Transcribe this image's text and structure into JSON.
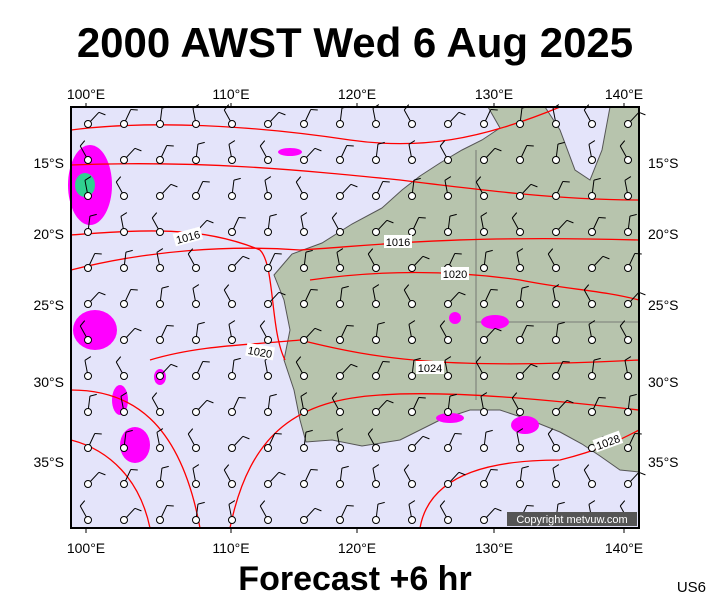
{
  "header": {
    "title": "2000 AWST Wed 6 Aug 2025"
  },
  "map": {
    "lon_labels": [
      "100°E",
      "110°E",
      "120°E",
      "130°E",
      "140°E"
    ],
    "lat_labels": [
      "15°S",
      "20°S",
      "25°S",
      "30°S",
      "35°S"
    ],
    "isobar_labels": [
      "1016",
      "1016",
      "1020",
      "1020",
      "1024",
      "1028"
    ],
    "copyright": "Copyright metvuw.com"
  },
  "footer": {
    "caption": "Forecast +6 hr",
    "code": "US6"
  }
}
